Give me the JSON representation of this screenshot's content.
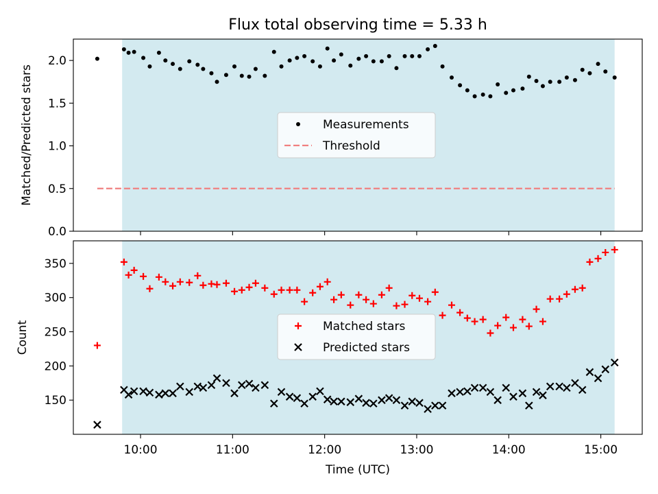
{
  "chart_data": [
    {
      "type": "scatter",
      "title": "Flux total observing time = 5.33 h",
      "ylabel": "Matched/Predicted stars",
      "xlabel": "",
      "ylim": [
        0,
        2.25
      ],
      "yticks": [
        "0.0",
        "0.5",
        "1.0",
        "1.5",
        "2.0"
      ],
      "x_tick_hours": [
        10,
        11,
        12,
        13,
        14,
        15
      ],
      "shaded_range_hours": [
        9.8,
        15.15
      ],
      "shade_color": "#d3eaf0",
      "grid": false,
      "legend_position": "center",
      "series": [
        {
          "name": "Measurements",
          "marker": "dot",
          "color": "#000000",
          "x_hours": [
            9.53,
            9.82,
            9.87,
            9.93,
            10.03,
            10.1,
            10.2,
            10.27,
            10.35,
            10.43,
            10.53,
            10.62,
            10.68,
            10.77,
            10.83,
            10.93,
            11.02,
            11.1,
            11.18,
            11.25,
            11.35,
            11.45,
            11.53,
            11.62,
            11.7,
            11.78,
            11.87,
            11.95,
            12.03,
            12.1,
            12.18,
            12.28,
            12.37,
            12.45,
            12.53,
            12.62,
            12.7,
            12.78,
            12.87,
            12.95,
            13.03,
            13.12,
            13.2,
            13.28,
            13.38,
            13.47,
            13.55,
            13.63,
            13.72,
            13.8,
            13.88,
            13.97,
            14.05,
            14.15,
            14.22,
            14.3,
            14.37,
            14.45,
            14.55,
            14.63,
            14.72,
            14.8,
            14.88,
            14.97,
            15.05,
            15.15
          ],
          "y": [
            2.02,
            2.13,
            2.09,
            2.1,
            2.03,
            1.93,
            2.09,
            2.0,
            1.96,
            1.9,
            1.99,
            1.95,
            1.9,
            1.85,
            1.75,
            1.83,
            1.93,
            1.82,
            1.81,
            1.9,
            1.82,
            2.1,
            1.93,
            2.0,
            2.03,
            2.05,
            1.99,
            1.93,
            2.14,
            2.0,
            2.07,
            1.94,
            2.02,
            2.05,
            1.99,
            1.99,
            2.05,
            1.91,
            2.05,
            2.05,
            2.05,
            2.13,
            2.17,
            1.93,
            1.8,
            1.71,
            1.65,
            1.58,
            1.6,
            1.58,
            1.72,
            1.62,
            1.65,
            1.67,
            1.81,
            1.76,
            1.7,
            1.75,
            1.75,
            1.8,
            1.77,
            1.89,
            1.85,
            1.96,
            1.87,
            1.8
          ]
        },
        {
          "name": "Threshold",
          "marker": "dashed-line",
          "color": "#f08080",
          "x_hours": [
            9.53,
            15.15
          ],
          "y": [
            0.5,
            0.5
          ]
        }
      ]
    },
    {
      "type": "scatter",
      "title": "",
      "ylabel": "Count",
      "xlabel": "Time (UTC)",
      "ylim": [
        100,
        383
      ],
      "yticks": [
        "150",
        "200",
        "250",
        "300",
        "350"
      ],
      "x_tick_labels": [
        "10:00",
        "11:00",
        "12:00",
        "13:00",
        "14:00",
        "15:00"
      ],
      "x_tick_hours": [
        10,
        11,
        12,
        13,
        14,
        15
      ],
      "shaded_range_hours": [
        9.8,
        15.15
      ],
      "shade_color": "#d3eaf0",
      "grid": false,
      "legend_position": "center",
      "series": [
        {
          "name": "Matched stars",
          "marker": "plus",
          "color": "#ff0000",
          "x_hours": [
            9.53,
            9.82,
            9.87,
            9.93,
            10.03,
            10.1,
            10.2,
            10.27,
            10.35,
            10.43,
            10.53,
            10.62,
            10.68,
            10.77,
            10.83,
            10.93,
            11.02,
            11.1,
            11.18,
            11.25,
            11.35,
            11.45,
            11.53,
            11.62,
            11.7,
            11.78,
            11.87,
            11.95,
            12.03,
            12.1,
            12.18,
            12.28,
            12.37,
            12.45,
            12.53,
            12.62,
            12.7,
            12.78,
            12.87,
            12.95,
            13.03,
            13.12,
            13.2,
            13.28,
            13.38,
            13.47,
            13.55,
            13.63,
            13.72,
            13.8,
            13.88,
            13.97,
            14.05,
            14.15,
            14.22,
            14.3,
            14.37,
            14.45,
            14.55,
            14.63,
            14.72,
            14.8,
            14.88,
            14.97,
            15.05,
            15.15
          ],
          "y": [
            230,
            352,
            333,
            340,
            331,
            313,
            330,
            323,
            317,
            323,
            322,
            332,
            318,
            320,
            319,
            321,
            309,
            311,
            315,
            321,
            314,
            305,
            311,
            311,
            311,
            294,
            307,
            316,
            323,
            297,
            304,
            289,
            304,
            297,
            291,
            304,
            314,
            288,
            290,
            303,
            299,
            294,
            308,
            274,
            289,
            278,
            270,
            265,
            268,
            248,
            259,
            271,
            256,
            268,
            258,
            283,
            265,
            298,
            298,
            305,
            312,
            314,
            352,
            357,
            366,
            370
          ]
        },
        {
          "name": "Predicted stars",
          "marker": "x",
          "color": "#000000",
          "x_hours": [
            9.53,
            9.82,
            9.87,
            9.93,
            10.03,
            10.1,
            10.2,
            10.27,
            10.35,
            10.43,
            10.53,
            10.62,
            10.68,
            10.77,
            10.83,
            10.93,
            11.02,
            11.1,
            11.18,
            11.25,
            11.35,
            11.45,
            11.53,
            11.62,
            11.7,
            11.78,
            11.87,
            11.95,
            12.03,
            12.1,
            12.18,
            12.28,
            12.37,
            12.45,
            12.53,
            12.62,
            12.7,
            12.78,
            12.87,
            12.95,
            13.03,
            13.12,
            13.2,
            13.28,
            13.38,
            13.47,
            13.55,
            13.63,
            13.72,
            13.8,
            13.88,
            13.97,
            14.05,
            14.15,
            14.22,
            14.3,
            14.37,
            14.45,
            14.55,
            14.63,
            14.72,
            14.8,
            14.88,
            14.97,
            15.05,
            15.15
          ],
          "y": [
            114,
            165,
            158,
            163,
            163,
            161,
            158,
            160,
            160,
            170,
            162,
            170,
            168,
            172,
            182,
            175,
            160,
            172,
            174,
            168,
            172,
            145,
            162,
            155,
            153,
            145,
            155,
            163,
            151,
            148,
            148,
            147,
            152,
            146,
            145,
            150,
            153,
            150,
            142,
            148,
            146,
            137,
            142,
            142,
            160,
            162,
            163,
            168,
            168,
            162,
            150,
            168,
            155,
            160,
            142,
            162,
            157,
            170,
            170,
            168,
            175,
            165,
            191,
            182,
            195,
            205
          ]
        }
      ]
    }
  ]
}
